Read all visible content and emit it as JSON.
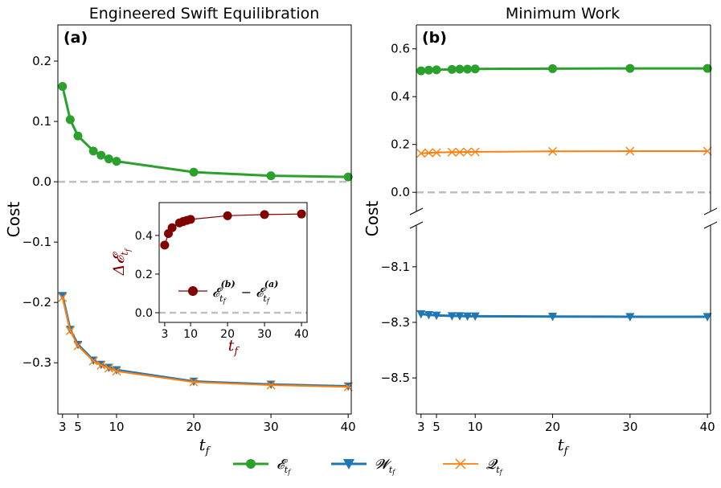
{
  "legend": {
    "items": [
      {
        "label": "𝓔ₜ_f",
        "color": "#2ca02c",
        "marker": "circle"
      },
      {
        "label": "𝓦ₜ_f",
        "color": "#1f77b4",
        "marker": "triangle-down"
      },
      {
        "label": "𝓠ₜ_f",
        "color": "#ff7f0e",
        "marker": "x"
      }
    ],
    "placement": "bottom-center"
  },
  "chart_data": [
    {
      "type": "line",
      "panel_label": "(a)",
      "title": "Engineered Swift Equilibration",
      "xlabel": "t_f",
      "ylabel": "Cost",
      "xlim": [
        2.4,
        40.4
      ],
      "ylim": [
        -0.385,
        0.26
      ],
      "xticks": [
        3,
        5,
        10,
        20,
        30,
        40
      ],
      "yticks": [
        -0.3,
        -0.2,
        -0.1,
        0.0,
        0.1,
        0.2
      ],
      "ytick_labels": [
        "−0.3",
        "−0.2",
        "−0.1",
        "0.0",
        "0.1",
        "0.2"
      ],
      "reference_line": 0.0,
      "x": [
        3,
        4,
        5,
        7,
        8,
        9,
        10,
        20,
        30,
        40
      ],
      "series": [
        {
          "name": "E",
          "color": "#2ca02c",
          "marker": "circle",
          "values": [
            0.158,
            0.103,
            0.076,
            0.051,
            0.044,
            0.038,
            0.034,
            0.016,
            0.01,
            0.008
          ]
        },
        {
          "name": "W",
          "color": "#1f77b4",
          "marker": "triangle-down",
          "values": [
            -0.189,
            -0.245,
            -0.27,
            -0.296,
            -0.303,
            -0.308,
            -0.312,
            -0.331,
            -0.336,
            -0.339
          ]
        },
        {
          "name": "Q",
          "color": "#ff7f0e",
          "marker": "x",
          "values": [
            -0.192,
            -0.247,
            -0.272,
            -0.297,
            -0.304,
            -0.309,
            -0.314,
            -0.332,
            -0.337,
            -0.34
          ]
        }
      ]
    },
    {
      "type": "line",
      "role": "inset",
      "xlabel": "t_f",
      "ylabel": "Δ𝓔_{t_f}",
      "xlim": [
        1.5,
        41.5
      ],
      "ylim": [
        -0.05,
        0.57
      ],
      "xticks": [
        3,
        10,
        20,
        30,
        40
      ],
      "yticks": [
        0.0,
        0.2,
        0.4
      ],
      "ytick_labels": [
        "0.0",
        "0.2",
        "0.4"
      ],
      "reference_line": 0.0,
      "x": [
        3,
        4,
        5,
        7,
        8,
        9,
        10,
        20,
        30,
        40
      ],
      "series": [
        {
          "name": "𝓔^(b) − 𝓔^(a)",
          "color": "#800000",
          "marker": "circle",
          "values": [
            0.35,
            0.41,
            0.44,
            0.465,
            0.472,
            0.478,
            0.483,
            0.502,
            0.508,
            0.511
          ]
        }
      ],
      "legend_label": "𝓔ₜ_f⁽ᵇ⁾ − 𝓔ₜ_f⁽ᵃ⁾"
    },
    {
      "type": "line",
      "panel_label": "(b)",
      "title": "Minimum Work",
      "xlabel": "t_f",
      "ylabel": "Cost",
      "xlim": [
        2.4,
        40.4
      ],
      "broken_y_axis": true,
      "upper": {
        "ylim": [
          -0.08,
          0.7
        ],
        "yticks": [
          0.0,
          0.2,
          0.4,
          0.6
        ],
        "ytick_labels": [
          "0.0",
          "0.2",
          "0.4",
          "0.6"
        ]
      },
      "lower": {
        "ylim": [
          -8.63,
          -7.95
        ],
        "yticks": [
          -8.1,
          -8.3,
          -8.5
        ],
        "ytick_labels": [
          "−8.1",
          "−8.3",
          "−8.5"
        ]
      },
      "reference_line": 0.0,
      "x": [
        3,
        4,
        5,
        7,
        8,
        9,
        10,
        20,
        30,
        40
      ],
      "series": [
        {
          "name": "E",
          "color": "#2ca02c",
          "marker": "circle",
          "values": [
            0.508,
            0.511,
            0.512,
            0.514,
            0.515,
            0.515,
            0.516,
            0.517,
            0.518,
            0.518
          ]
        },
        {
          "name": "Q",
          "color": "#ff7f0e",
          "marker": "x",
          "values": [
            0.163,
            0.165,
            0.166,
            0.168,
            0.168,
            0.169,
            0.169,
            0.171,
            0.172,
            0.172
          ]
        },
        {
          "name": "W",
          "color": "#1f77b4",
          "marker": "triangle-down",
          "values": [
            -8.27,
            -8.273,
            -8.275,
            -8.277,
            -8.277,
            -8.278,
            -8.278,
            -8.279,
            -8.28,
            -8.28
          ]
        }
      ]
    }
  ]
}
